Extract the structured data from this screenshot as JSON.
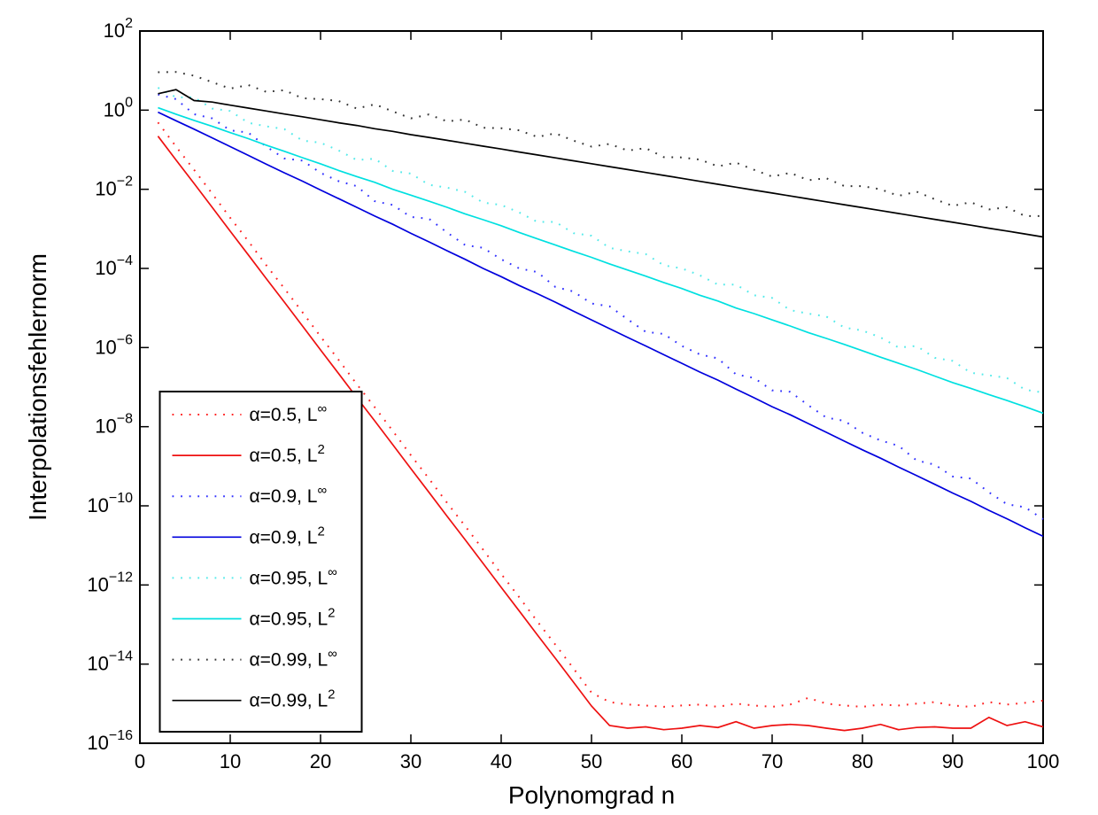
{
  "figure": {
    "background": "#ffffff"
  },
  "chart_data": {
    "type": "line",
    "title": "",
    "xlabel": "Polynomgrad n",
    "ylabel": "Interpolationsfehlernorm",
    "x_axis": {
      "min": 0,
      "max": 100,
      "ticks": [
        0,
        10,
        20,
        30,
        40,
        50,
        60,
        70,
        80,
        90,
        100
      ]
    },
    "y_axis": {
      "scale": "log10",
      "min_exp": -16,
      "max_exp": 2,
      "tick_exponents": [
        2,
        0,
        -2,
        -4,
        -6,
        -8,
        -10,
        -12,
        -14,
        -16
      ],
      "tick_base": "10"
    },
    "grid": false,
    "legend_position": "southwest-inside",
    "x": [
      2,
      4,
      6,
      8,
      10,
      12,
      14,
      16,
      18,
      20,
      22,
      24,
      26,
      28,
      30,
      32,
      34,
      36,
      38,
      40,
      42,
      44,
      46,
      48,
      50,
      52,
      54,
      56,
      58,
      60,
      62,
      64,
      66,
      68,
      70,
      72,
      74,
      76,
      78,
      80,
      82,
      84,
      86,
      88,
      90,
      92,
      94,
      96,
      98,
      100
    ],
    "series": [
      {
        "name": "α=0.5, L∞",
        "label_pre": "α=0.5, L",
        "label_sup": "∞",
        "color": "#ff2222",
        "style": "dotted",
        "values": [
          0.49,
          0.12,
          0.031,
          0.0078,
          0.0019,
          0.00049,
          0.00012,
          3.1e-05,
          7.8e-06,
          1.9e-06,
          4.9e-07,
          1.2e-07,
          3.1e-08,
          7.8e-09,
          1.9e-09,
          4.9e-10,
          1.2e-10,
          3.1e-11,
          7.8e-12,
          1.9e-12,
          4.9e-13,
          1.2e-13,
          3.1e-14,
          7.8e-15,
          1.9e-15,
          1.1e-15,
          9.5e-16,
          9e-16,
          8.3e-16,
          9e-16,
          9.5e-16,
          8.3e-16,
          1e-15,
          9e-16,
          8.3e-16,
          9.5e-16,
          1.4e-15,
          1e-15,
          9e-16,
          8.3e-16,
          9.5e-16,
          9e-16,
          1e-15,
          1.1e-15,
          9e-16,
          8.3e-16,
          1.1e-15,
          9.5e-16,
          1.05e-15,
          1.2e-15
        ]
      },
      {
        "name": "α=0.5, L2",
        "label_pre": "α=0.5, L",
        "label_sup": "2",
        "color": "#ee1111",
        "style": "solid",
        "values": [
          0.22,
          0.055,
          0.014,
          0.0035,
          0.00087,
          0.00022,
          5.5e-05,
          1.4e-05,
          3.5e-06,
          8.7e-07,
          2.2e-07,
          5.5e-08,
          1.4e-08,
          3.5e-09,
          8.7e-10,
          2.2e-10,
          5.5e-11,
          1.4e-11,
          3.5e-12,
          8.7e-13,
          2.2e-13,
          5.5e-14,
          1.4e-14,
          3.5e-15,
          8.7e-16,
          2.8e-16,
          2.4e-16,
          2.6e-16,
          2.2e-16,
          2.4e-16,
          2.8e-16,
          2.5e-16,
          3.5e-16,
          2.4e-16,
          2.8e-16,
          3e-16,
          2.8e-16,
          2.4e-16,
          2.1e-16,
          2.4e-16,
          3e-16,
          2.2e-16,
          2.5e-16,
          2.6e-16,
          2.4e-16,
          2.4e-16,
          4.5e-16,
          2.8e-16,
          3.5e-16,
          2.6e-16
        ]
      },
      {
        "name": "α=0.9, L∞",
        "label_pre": "α=0.9, L",
        "label_sup": "∞",
        "color": "#3333ff",
        "style": "dotted",
        "values": [
          2.5,
          1.9,
          0.79,
          0.62,
          0.31,
          0.27,
          0.12,
          0.06,
          0.053,
          0.026,
          0.016,
          0.012,
          0.005,
          0.004,
          0.002,
          0.0018,
          0.00081,
          0.00039,
          0.00033,
          0.00017,
          0.0001,
          8.1e-05,
          3.4e-05,
          2.6e-05,
          1.3e-05,
          1.1e-05,
          5.2e-06,
          2.5e-06,
          2.2e-06,
          1.1e-06,
          6.7e-07,
          5.3e-07,
          2.1e-07,
          1.7e-07,
          8.3e-08,
          7.6e-08,
          3.5e-08,
          1.7e-08,
          1.4e-08,
          7e-09,
          4.5e-09,
          3.3e-09,
          1.4e-09,
          1.1e-09,
          5.5e-10,
          4.9e-10,
          2.2e-10,
          1.1e-10,
          9.2e-11,
          4.6e-11
        ]
      },
      {
        "name": "α=0.9, L2",
        "label_pre": "α=0.9, L",
        "label_sup": "2",
        "color": "#0000dd",
        "style": "solid",
        "values": [
          0.89,
          0.54,
          0.33,
          0.2,
          0.12,
          0.072,
          0.043,
          0.026,
          0.016,
          0.0096,
          0.0058,
          0.0035,
          0.0021,
          0.0013,
          0.00077,
          0.00047,
          0.00028,
          0.00017,
          0.0001,
          6.2e-05,
          3.7e-05,
          2.3e-05,
          1.4e-05,
          8.3e-06,
          5e-06,
          3e-06,
          1.8e-06,
          1.1e-06,
          6.6e-07,
          4e-07,
          2.4e-07,
          1.5e-07,
          8.9e-08,
          5.4e-08,
          3.2e-08,
          2e-08,
          1.2e-08,
          7.2e-09,
          4.3e-09,
          2.6e-09,
          1.6e-09,
          9.5e-10,
          5.8e-10,
          3.5e-10,
          2.1e-10,
          1.3e-10,
          7.7e-11,
          4.7e-11,
          2.8e-11,
          1.7e-11
        ]
      },
      {
        "name": "α=0.95, L∞",
        "label_pre": "α=0.95, L",
        "label_sup": "∞",
        "color": "#55eaea",
        "style": "dotted",
        "values": [
          3.7,
          2.1,
          2.1,
          1.1,
          0.95,
          0.48,
          0.39,
          0.33,
          0.17,
          0.15,
          0.096,
          0.055,
          0.059,
          0.029,
          0.025,
          0.013,
          0.011,
          0.0086,
          0.0046,
          0.004,
          0.0026,
          0.0015,
          0.0015,
          0.00078,
          0.00067,
          0.00033,
          0.00027,
          0.00023,
          0.00012,
          0.0001,
          6.7e-05,
          3.9e-05,
          3.9e-05,
          2.1e-05,
          1.8e-05,
          8.8e-06,
          7.2e-06,
          6.1e-06,
          3.2e-06,
          2.7e-06,
          1.8e-06,
          1e-06,
          1.1e-06,
          5.5e-07,
          4.6e-07,
          2.3e-07,
          2e-07,
          1.7e-07,
          8.6e-08,
          7.3e-08
        ]
      },
      {
        "name": "α=0.95, L2",
        "label_pre": "α=0.95, L",
        "label_sup": "2",
        "color": "#00e0e0",
        "style": "solid",
        "values": [
          1.15,
          0.79,
          0.55,
          0.39,
          0.27,
          0.19,
          0.13,
          0.091,
          0.063,
          0.044,
          0.03,
          0.021,
          0.015,
          0.01,
          0.0071,
          0.005,
          0.0035,
          0.0024,
          0.0017,
          0.0012,
          0.00081,
          0.00056,
          0.00039,
          0.00027,
          0.00019,
          0.00013,
          9.1e-05,
          6.4e-05,
          4.4e-05,
          3.1e-05,
          2.1e-05,
          1.5e-05,
          1e-05,
          7.2e-06,
          5e-06,
          3.5e-06,
          2.4e-06,
          1.7e-06,
          1.2e-06,
          8.3e-07,
          5.7e-07,
          4e-07,
          2.8e-07,
          1.9e-07,
          1.3e-07,
          9.3e-08,
          6.5e-08,
          4.6e-08,
          3.2e-08,
          2.2e-08
        ]
      },
      {
        "name": "α=0.99, L∞",
        "label_pre": "α=0.99, L",
        "label_sup": "∞",
        "color": "#333333",
        "style": "dotted",
        "values": [
          9.1,
          9.2,
          7.4,
          5.1,
          3.5,
          4.3,
          2.9,
          3.2,
          2.0,
          1.9,
          1.7,
          1.1,
          1.4,
          0.93,
          0.62,
          0.78,
          0.52,
          0.58,
          0.36,
          0.35,
          0.31,
          0.21,
          0.26,
          0.17,
          0.12,
          0.14,
          0.095,
          0.11,
          0.065,
          0.064,
          0.056,
          0.038,
          0.047,
          0.031,
          0.021,
          0.026,
          0.017,
          0.019,
          0.012,
          0.012,
          0.01,
          0.0068,
          0.0087,
          0.0056,
          0.0038,
          0.0047,
          0.0031,
          0.0035,
          0.0021,
          0.0021
        ]
      },
      {
        "name": "α=0.99, L2",
        "label_pre": "α=0.99, L",
        "label_sup": "2",
        "color": "#000000",
        "style": "solid",
        "values": [
          2.6,
          3.3,
          1.75,
          1.6,
          1.34,
          1.13,
          0.95,
          0.8,
          0.68,
          0.57,
          0.48,
          0.41,
          0.34,
          0.29,
          0.24,
          0.205,
          0.173,
          0.146,
          0.123,
          0.104,
          0.0875,
          0.0738,
          0.0622,
          0.0525,
          0.0443,
          0.0373,
          0.0315,
          0.0266,
          0.0224,
          0.0189,
          0.0159,
          0.0134,
          0.0113,
          0.00955,
          0.00805,
          0.00679,
          0.00573,
          0.00483,
          0.00407,
          0.00344,
          0.0029,
          0.00244,
          0.00206,
          0.00174,
          0.00147,
          0.00124,
          0.00104,
          0.000879,
          0.000741,
          0.000625
        ]
      }
    ]
  }
}
